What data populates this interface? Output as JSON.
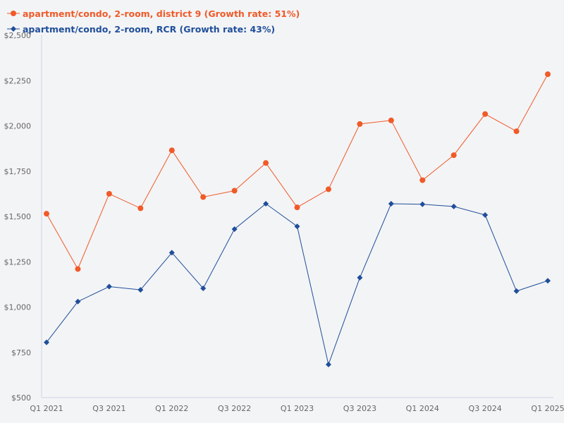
{
  "chart_data": {
    "type": "line",
    "categories": [
      "Q1 2021",
      "Q2 2021",
      "Q3 2021",
      "Q4 2021",
      "Q1 2022",
      "Q2 2022",
      "Q3 2022",
      "Q4 2022",
      "Q1 2023",
      "Q2 2023",
      "Q3 2023",
      "Q4 2023",
      "Q1 2024",
      "Q2 2024",
      "Q3 2024",
      "Q4 2024",
      "Q1 2025"
    ],
    "x_tick_labels": [
      "Q1 2021",
      "",
      "Q3 2021",
      "",
      "Q1 2022",
      "",
      "Q3 2022",
      "",
      "Q1 2023",
      "",
      "Q3 2023",
      "",
      "Q1 2024",
      "",
      "Q3 2024",
      "",
      "Q1 2025"
    ],
    "y_ticks": [
      {
        "value": 500,
        "label": "$500"
      },
      {
        "value": 750,
        "label": "$750"
      },
      {
        "value": 1000,
        "label": "$1,000"
      },
      {
        "value": 1250,
        "label": "$1,250"
      },
      {
        "value": 1500,
        "label": "$1,500"
      },
      {
        "value": 1750,
        "label": "$1,750"
      },
      {
        "value": 2000,
        "label": "$2,000"
      },
      {
        "value": 2250,
        "label": "$2,250"
      },
      {
        "value": 2500,
        "label": "$2,500"
      }
    ],
    "ylim": [
      500,
      2500
    ],
    "grid": false,
    "legend_position": "top-left",
    "series": [
      {
        "name": "apartment/condo, 2-room, district 9 (Growth rate: 51%)",
        "color": "#f05a28",
        "marker": "circle",
        "values": [
          1515,
          1210,
          1625,
          1545,
          1865,
          1607,
          1642,
          1795,
          1550,
          1650,
          2010,
          2030,
          1700,
          1838,
          2065,
          1970,
          2285
        ]
      },
      {
        "name": "apartment/condo, 2-room, RCR (Growth rate: 43%)",
        "color": "#1f4e9a",
        "marker": "diamond",
        "values": [
          805,
          1030,
          1113,
          1095,
          1300,
          1103,
          1430,
          1570,
          1445,
          683,
          1162,
          1570,
          1567,
          1555,
          1508,
          1088,
          1145
        ]
      }
    ]
  }
}
